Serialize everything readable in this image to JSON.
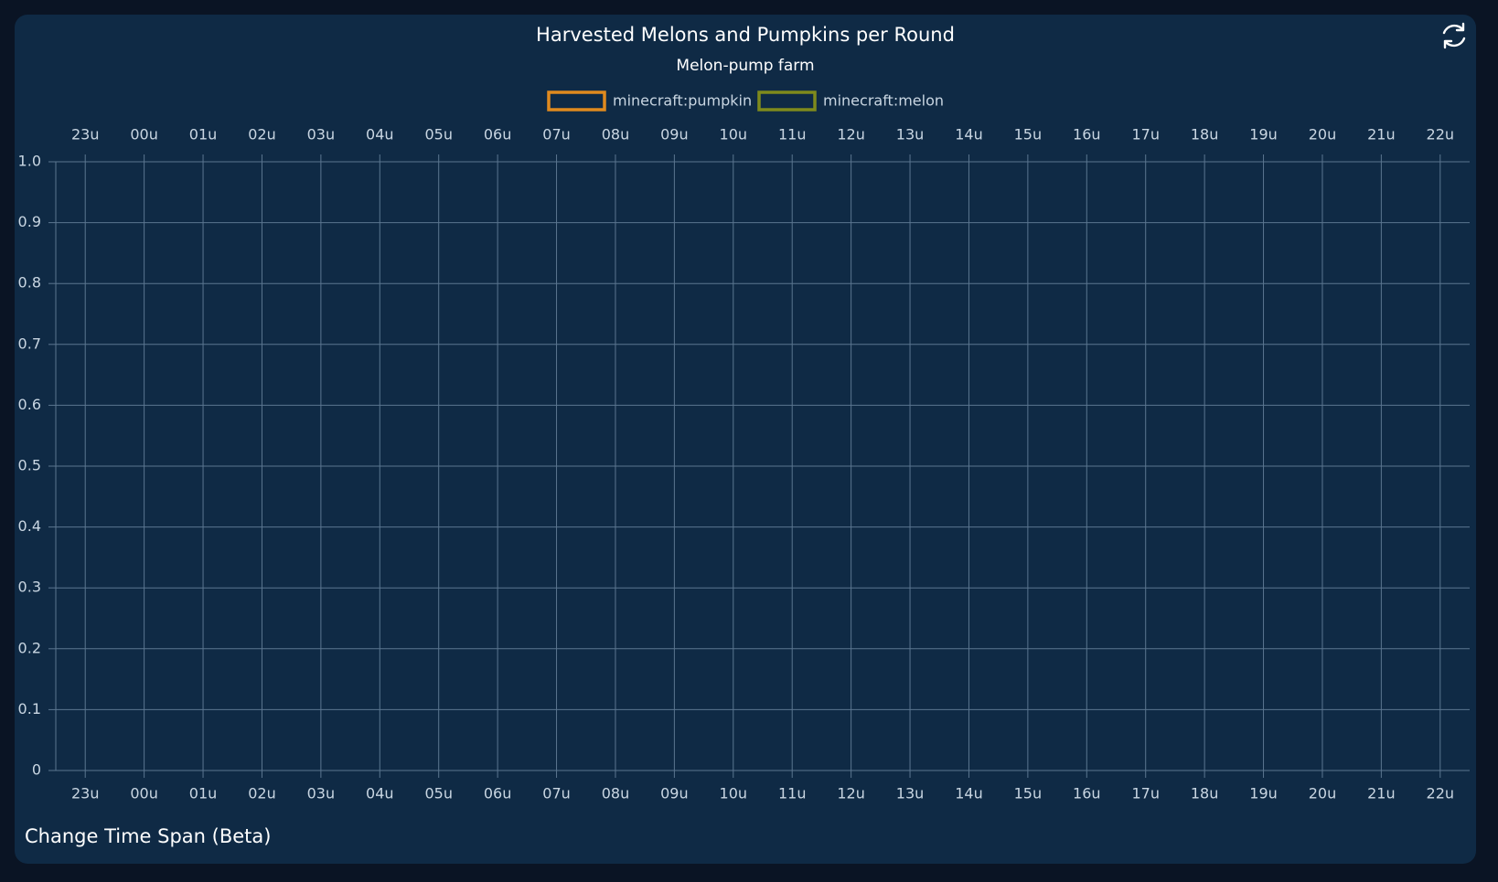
{
  "chart_data": {
    "type": "line",
    "title": "Harvested Melons and Pumpkins per Round",
    "subtitle": "Melon-pump farm",
    "categories": [
      "23u",
      "00u",
      "01u",
      "02u",
      "03u",
      "04u",
      "05u",
      "06u",
      "07u",
      "08u",
      "09u",
      "10u",
      "11u",
      "12u",
      "13u",
      "14u",
      "15u",
      "16u",
      "17u",
      "18u",
      "19u",
      "20u",
      "21u",
      "22u"
    ],
    "series": [
      {
        "name": "minecraft:pumpkin",
        "color": "#e08a1e",
        "values": [
          null,
          null,
          null,
          null,
          null,
          null,
          null,
          null,
          null,
          null,
          null,
          null,
          null,
          null,
          null,
          null,
          null,
          null,
          null,
          null,
          null,
          null,
          null,
          null
        ]
      },
      {
        "name": "minecraft:melon",
        "color": "#7f8a1c",
        "values": [
          null,
          null,
          null,
          null,
          null,
          null,
          null,
          null,
          null,
          null,
          null,
          null,
          null,
          null,
          null,
          null,
          null,
          null,
          null,
          null,
          null,
          null,
          null,
          null
        ]
      }
    ],
    "ylim": [
      0,
      1
    ],
    "yticks": [
      0,
      0.1,
      0.2,
      0.3,
      0.4,
      0.5,
      0.6,
      0.7,
      0.8,
      0.9,
      {
        "value": 1,
        "label": "1.0"
      }
    ],
    "grid": true
  },
  "footer": {
    "link": "Change Time Span (Beta)"
  }
}
